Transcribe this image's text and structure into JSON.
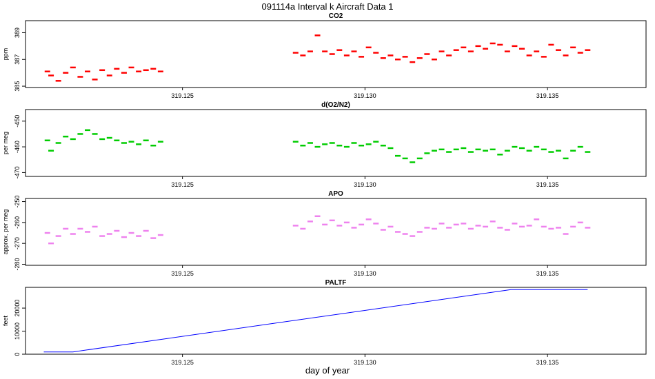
{
  "page": {
    "title": "091114a   Interval k Aircraft Data 1",
    "xlabel": "day of year"
  },
  "chart_data": [
    {
      "type": "scatter",
      "title": "CO2",
      "ylabel": "ppm",
      "color": "#ff0000",
      "yticks": [
        385,
        387,
        389
      ],
      "ylim": [
        384.9,
        389.9
      ],
      "xticks": [
        "319.125",
        "319.130",
        "319.135"
      ],
      "xtick_values": [
        319.125,
        319.13,
        319.135
      ],
      "xlim": [
        319.1207,
        319.1377
      ],
      "segments": [
        {
          "x": [
            319.1213,
            319.1214,
            319.1216,
            319.1218,
            319.122,
            319.1222,
            319.1224,
            319.1226,
            319.1228,
            319.123,
            319.1232,
            319.1234,
            319.1236,
            319.1238,
            319.124,
            319.1242,
            319.1244
          ],
          "y": [
            386.1,
            385.8,
            385.4,
            386.0,
            386.4,
            385.7,
            386.1,
            385.5,
            386.2,
            385.8,
            386.3,
            386.0,
            386.4,
            386.1,
            386.2,
            386.3,
            386.1
          ]
        },
        {
          "x": [
            319.1281,
            319.1283,
            319.1285,
            319.1287,
            319.1289,
            319.1291,
            319.1293,
            319.1295,
            319.1297,
            319.1299,
            319.1301,
            319.1303,
            319.1305,
            319.1307,
            319.1309,
            319.1311,
            319.1313,
            319.1315,
            319.1317,
            319.1319,
            319.1321,
            319.1323,
            319.1325,
            319.1327,
            319.1329,
            319.1331,
            319.1333,
            319.1335,
            319.1337,
            319.1339,
            319.1341,
            319.1343,
            319.1345,
            319.1347,
            319.1349,
            319.1351,
            319.1353,
            319.1355,
            319.1357,
            319.1359,
            319.1361
          ],
          "y": [
            387.5,
            387.3,
            387.6,
            388.8,
            387.6,
            387.4,
            387.7,
            387.3,
            387.6,
            387.2,
            387.9,
            387.5,
            387.1,
            387.3,
            387.0,
            387.2,
            386.8,
            387.1,
            387.4,
            387.0,
            387.6,
            387.3,
            387.7,
            387.9,
            387.6,
            388.0,
            387.8,
            388.2,
            388.1,
            387.6,
            388.0,
            387.8,
            387.3,
            387.6,
            387.2,
            388.1,
            387.7,
            387.3,
            387.9,
            387.5,
            387.7
          ]
        }
      ]
    },
    {
      "type": "scatter",
      "title": "d(O2/N2)",
      "ylabel": "per meg",
      "color": "#00cc00",
      "yticks": [
        -470,
        -460,
        -450
      ],
      "ylim": [
        -471.5,
        -445.5
      ],
      "xticks": [
        "319.125",
        "319.130",
        "319.135"
      ],
      "xtick_values": [
        319.125,
        319.13,
        319.135
      ],
      "xlim": [
        319.1207,
        319.1377
      ],
      "segments": [
        {
          "x": [
            319.1213,
            319.1214,
            319.1216,
            319.1218,
            319.122,
            319.1222,
            319.1224,
            319.1226,
            319.1228,
            319.123,
            319.1232,
            319.1234,
            319.1236,
            319.1238,
            319.124,
            319.1242,
            319.1244
          ],
          "y": [
            -457.5,
            -461.5,
            -458.5,
            -456.0,
            -457.0,
            -455.0,
            -453.5,
            -455.0,
            -457.0,
            -456.5,
            -457.5,
            -458.5,
            -458.0,
            -459.0,
            -457.5,
            -459.5,
            -458.0
          ]
        },
        {
          "x": [
            319.1281,
            319.1283,
            319.1285,
            319.1287,
            319.1289,
            319.1291,
            319.1293,
            319.1295,
            319.1297,
            319.1299,
            319.1301,
            319.1303,
            319.1305,
            319.1307,
            319.1309,
            319.1311,
            319.1313,
            319.1315,
            319.1317,
            319.1319,
            319.1321,
            319.1323,
            319.1325,
            319.1327,
            319.1329,
            319.1331,
            319.1333,
            319.1335,
            319.1337,
            319.1339,
            319.1341,
            319.1343,
            319.1345,
            319.1347,
            319.1349,
            319.1351,
            319.1353,
            319.1355,
            319.1357,
            319.1359,
            319.1361
          ],
          "y": [
            -458.0,
            -459.5,
            -458.5,
            -460.0,
            -459.0,
            -458.5,
            -459.5,
            -460.0,
            -458.5,
            -459.5,
            -459.0,
            -458.0,
            -459.5,
            -460.5,
            -463.5,
            -464.5,
            -466.0,
            -464.5,
            -462.5,
            -461.5,
            -461.0,
            -462.0,
            -461.0,
            -460.5,
            -462.0,
            -461.0,
            -461.5,
            -461.0,
            -463.0,
            -461.5,
            -460.0,
            -460.5,
            -461.5,
            -460.0,
            -461.0,
            -462.0,
            -461.5,
            -464.5,
            -461.5,
            -460.0,
            -462.0
          ]
        }
      ]
    },
    {
      "type": "scatter",
      "title": "APO",
      "ylabel": "approx. per meg",
      "color": "#ee82ee",
      "yticks": [
        -280,
        -270,
        -260,
        -250
      ],
      "ylim": [
        -280.5,
        -248.5
      ],
      "xticks": [
        "319.125",
        "319.130",
        "319.135"
      ],
      "xtick_values": [
        319.125,
        319.13,
        319.135
      ],
      "xlim": [
        319.1207,
        319.1377
      ],
      "segments": [
        {
          "x": [
            319.1213,
            319.1214,
            319.1216,
            319.1218,
            319.122,
            319.1222,
            319.1224,
            319.1226,
            319.1228,
            319.123,
            319.1232,
            319.1234,
            319.1236,
            319.1238,
            319.124,
            319.1242,
            319.1244
          ],
          "y": [
            -265.0,
            -270.0,
            -266.5,
            -263.0,
            -265.5,
            -263.0,
            -264.5,
            -262.0,
            -266.5,
            -265.5,
            -264.0,
            -267.0,
            -265.0,
            -266.5,
            -264.0,
            -267.5,
            -266.0
          ]
        },
        {
          "x": [
            319.1281,
            319.1283,
            319.1285,
            319.1287,
            319.1289,
            319.1291,
            319.1293,
            319.1295,
            319.1297,
            319.1299,
            319.1301,
            319.1303,
            319.1305,
            319.1307,
            319.1309,
            319.1311,
            319.1313,
            319.1315,
            319.1317,
            319.1319,
            319.1321,
            319.1323,
            319.1325,
            319.1327,
            319.1329,
            319.1331,
            319.1333,
            319.1335,
            319.1337,
            319.1339,
            319.1341,
            319.1343,
            319.1345,
            319.1347,
            319.1349,
            319.1351,
            319.1353,
            319.1355,
            319.1357,
            319.1359,
            319.1361
          ],
          "y": [
            -261.5,
            -263.0,
            -259.5,
            -257.0,
            -261.0,
            -259.0,
            -261.5,
            -260.0,
            -262.5,
            -261.0,
            -258.5,
            -260.5,
            -263.5,
            -262.0,
            -264.5,
            -265.5,
            -266.5,
            -264.5,
            -262.5,
            -263.0,
            -260.5,
            -262.5,
            -261.0,
            -260.5,
            -263.0,
            -261.5,
            -262.0,
            -259.5,
            -262.5,
            -263.5,
            -260.5,
            -262.0,
            -261.5,
            -258.5,
            -262.0,
            -263.0,
            -262.5,
            -265.5,
            -262.0,
            -260.0,
            -262.5
          ]
        }
      ]
    },
    {
      "type": "line",
      "title": "PALTF",
      "ylabel": "feet",
      "color": "#0000ff",
      "yticks": [
        0,
        10000,
        20000
      ],
      "ylim": [
        0,
        29000
      ],
      "xticks": [
        "319.125",
        "319.130",
        "319.135"
      ],
      "xtick_values": [
        319.125,
        319.13,
        319.135
      ],
      "xlim": [
        319.1207,
        319.1377
      ],
      "x": [
        319.1212,
        319.122,
        319.134,
        319.1361
      ],
      "y": [
        1000,
        1000,
        28000,
        28000
      ]
    }
  ]
}
